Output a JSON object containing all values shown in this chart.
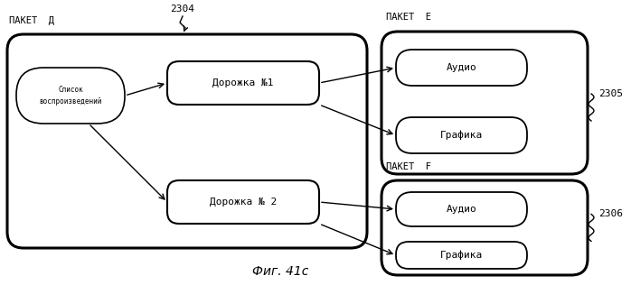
{
  "bg_color": "#ffffff",
  "fig_caption": "Фиг. 41с",
  "label_paket_d": "ПАКЕТ  Д",
  "label_paket_e": "ПАКЕТ  Е",
  "label_paket_f": "ПАКЕТ  F",
  "label_2304": "2304",
  "label_2305": "2305",
  "label_2306": "2306",
  "box_spisok": "Список\nвоспроизведений",
  "box_track1": "Дорожка №1",
  "box_track2": "Дорожка № 2",
  "box_audio1": "Аудио",
  "box_grafika1": "Графика",
  "box_audio2": "Аудио",
  "box_grafika2": "Графика",
  "font_size_labels": 7.5,
  "font_size_boxes": 7,
  "font_size_caption": 10,
  "font_size_numbers": 8,
  "font_size_spisok": 5.5
}
